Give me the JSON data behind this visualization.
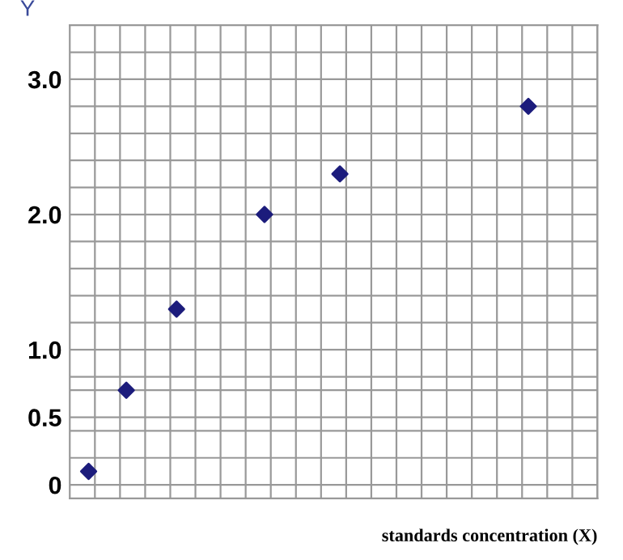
{
  "chart_data": {
    "type": "scatter",
    "xlabel": "standards concentration (X)",
    "ylabel": "Y",
    "categories": [
      null,
      null,
      null,
      null,
      null,
      null,
      null,
      null,
      null,
      null,
      null,
      null,
      null,
      null,
      null,
      null,
      null,
      null,
      null,
      null,
      null,
      null,
      null,
      null,
      null,
      null,
      null,
      null,
      null,
      null,
      null,
      null,
      null,
      null,
      null,
      null,
      null,
      null,
      null,
      null,
      null,
      null
    ],
    "series": [
      {
        "color": "#1c1c7c",
        "values": [
          null,
          0.1,
          null,
          null,
          0.7,
          null,
          null,
          null,
          1.3,
          null,
          null,
          null,
          null,
          null,
          null,
          2.0,
          null,
          null,
          null,
          null,
          null,
          2.3,
          null,
          null,
          null,
          null,
          null,
          null,
          null,
          null,
          null,
          null,
          null,
          null,
          null,
          null,
          2.8,
          null,
          null,
          null,
          null,
          null
        ]
      }
    ],
    "marker": "diamond",
    "grid": true,
    "legend": false,
    "ylim": [
      -0.1,
      3.4
    ],
    "yticks": [
      {
        "value": 0,
        "label": "0"
      },
      {
        "value": 0.5,
        "label": "0.5"
      },
      {
        "value": 1.0,
        "label": "1.0"
      },
      {
        "value": 2.0,
        "label": "2.0"
      },
      {
        "value": 3.0,
        "label": "3.0"
      },
      {
        "value": 0.2,
        "label": null
      },
      {
        "value": 0.4,
        "label": null
      },
      {
        "value": 0.7,
        "label": null
      },
      {
        "value": 0.8,
        "label": null
      },
      {
        "value": 1.2,
        "label": null
      },
      {
        "value": 1.4,
        "label": null
      },
      {
        "value": 1.6,
        "label": null
      },
      {
        "value": 1.8,
        "label": null
      },
      {
        "value": 2.2,
        "label": null
      },
      {
        "value": 2.4,
        "label": null
      },
      {
        "value": 2.6,
        "label": null
      },
      {
        "value": 2.8,
        "label": null
      },
      {
        "value": 3.2,
        "label": null
      }
    ]
  }
}
